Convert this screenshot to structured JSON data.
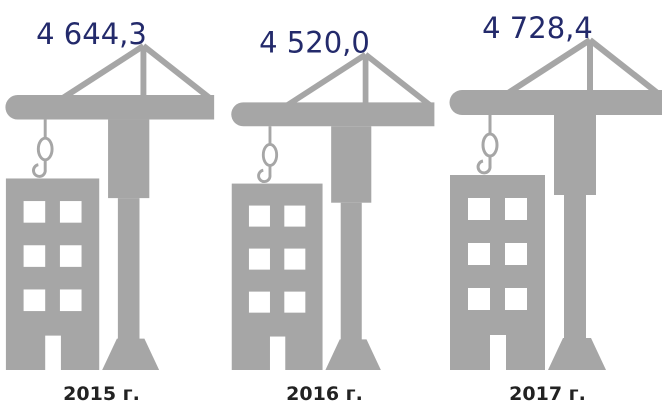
{
  "chart_data": {
    "type": "pictogram",
    "categories": [
      "2015 г.",
      "2016 г.",
      "2017 г."
    ],
    "values": [
      4644.3,
      4520.0,
      4728.4
    ],
    "value_labels": [
      "4 644,3",
      "4 520,0",
      "4 728,4"
    ],
    "color": "#a6a6a6"
  }
}
